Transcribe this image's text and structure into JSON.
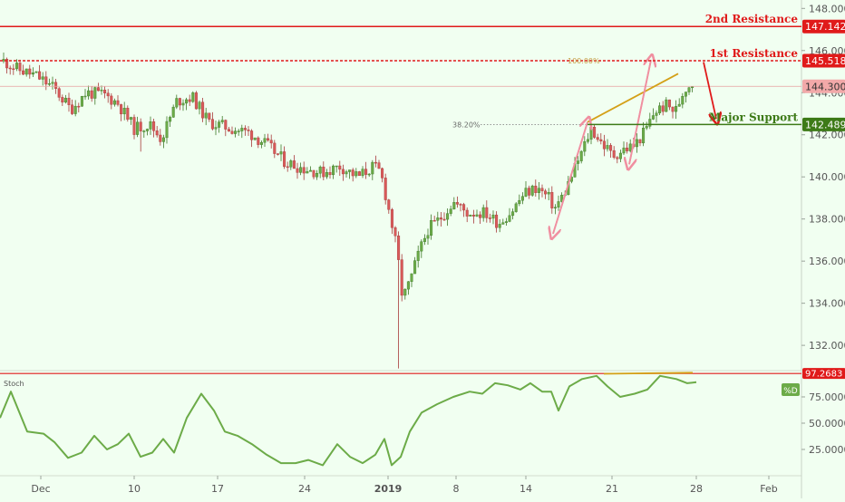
{
  "chart_data": [
    {
      "type": "candlestick",
      "x_ticks": [
        "Dec",
        "10",
        "17",
        "24",
        "2019",
        "8",
        "14",
        "21",
        "28",
        "Feb"
      ],
      "y_ticks": [
        "132.000",
        "134.000",
        "136.000",
        "138.000",
        "140.000",
        "142.000",
        "144.000",
        "146.000",
        "148.000"
      ],
      "ylim": [
        130.8,
        148.4
      ],
      "current_price": "144.300",
      "levels": [
        {
          "label": "2nd Resistance",
          "value": "147.142",
          "color": "#e01a1a"
        },
        {
          "label": "1st Resistance",
          "value": "145.518",
          "color": "#e01a1a"
        },
        {
          "label": "Major Support",
          "value": "142.489",
          "color": "#3d7a17"
        }
      ],
      "fib_labels": [
        "100.00%",
        "38.20%"
      ],
      "colors": {
        "up": "#6cab48",
        "down": "#d95a5a",
        "resistance": "#e01a1a",
        "support": "#3d7a17",
        "trendline": "#d4a017",
        "projection": "#f08fa0"
      }
    },
    {
      "type": "line",
      "title": "Stoch",
      "series": [
        {
          "name": "%D",
          "color": "#6cab48"
        }
      ],
      "y_ticks": [
        "25.0000",
        "50.0000",
        "75.0000"
      ],
      "ylim": [
        0,
        100
      ],
      "current_value": "97.2683"
    }
  ]
}
